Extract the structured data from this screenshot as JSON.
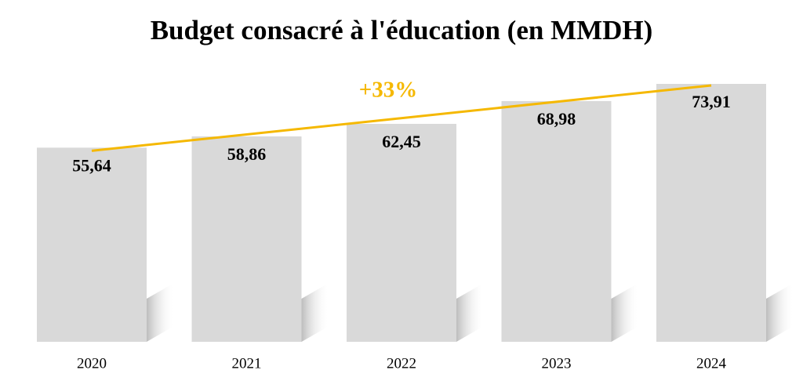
{
  "chart_data": {
    "type": "bar",
    "title": "Budget consacré à l'éducation (en MMDH)",
    "categories": [
      "2020",
      "2021",
      "2022",
      "2023",
      "2024"
    ],
    "values": [
      55.64,
      58.86,
      62.45,
      68.98,
      73.91
    ],
    "value_labels": [
      "55,64",
      "58,86",
      "62,45",
      "68,98",
      "73,91"
    ],
    "color": "#d9d9d9",
    "annotation": "+33%",
    "annotation_color": "#f5b800"
  }
}
